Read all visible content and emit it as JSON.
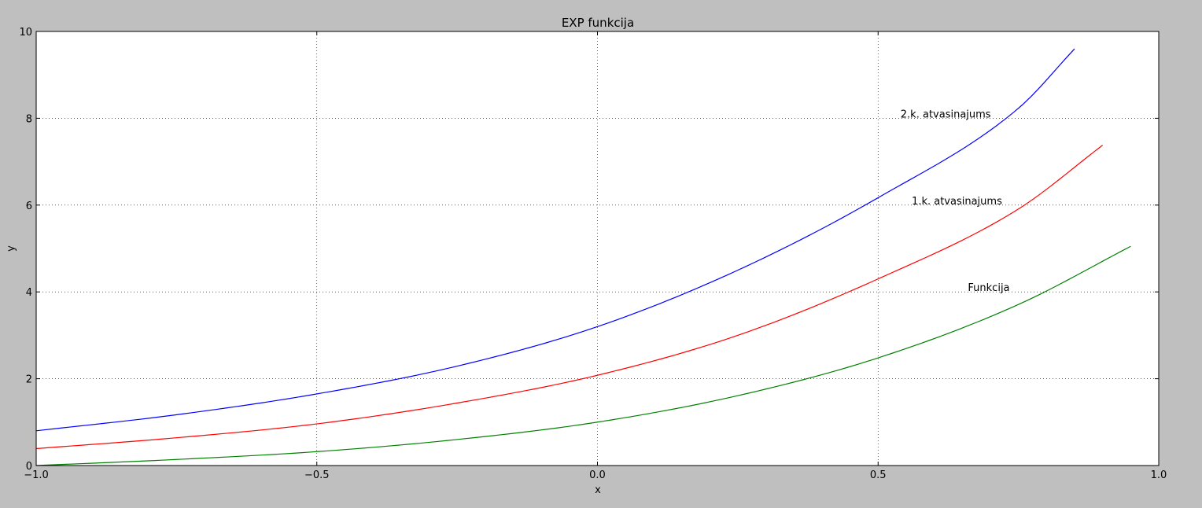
{
  "chart_data": {
    "type": "line",
    "title": "EXP funkcija",
    "xlabel": "x",
    "ylabel": "y",
    "xlim": [
      -1.0,
      1.0
    ],
    "ylim": [
      0,
      10
    ],
    "grid": true,
    "x_ticks": [
      "−1.0",
      "−0.5",
      "0.0",
      "0.5",
      "1.0"
    ],
    "y_ticks": [
      "0",
      "2",
      "4",
      "6",
      "8",
      "10"
    ],
    "colors": {
      "figure_bg": "#bfbfbf",
      "axes_bg": "#ffffff",
      "grid": "#000000"
    },
    "series": [
      {
        "color": "#008000",
        "x": [
          -1.0,
          -0.75,
          -0.5,
          -0.25,
          0.0,
          0.25,
          0.5,
          0.75,
          0.95
        ],
        "y": [
          0.0,
          0.14,
          0.32,
          0.6,
          1.0,
          1.61,
          2.48,
          3.71,
          5.05
        ]
      },
      {
        "color": "#ff0000",
        "x": [
          -1.0,
          -0.75,
          -0.5,
          -0.25,
          0.0,
          0.25,
          0.5,
          0.75,
          0.9
        ],
        "y": [
          0.39,
          0.64,
          0.96,
          1.44,
          2.08,
          3.0,
          4.3,
          5.91,
          7.38
        ]
      },
      {
        "color": "#0000ff",
        "x": [
          -1.0,
          -0.75,
          -0.5,
          -0.25,
          0.0,
          0.25,
          0.5,
          0.75,
          0.85
        ],
        "y": [
          0.8,
          1.17,
          1.65,
          2.29,
          3.2,
          4.5,
          6.17,
          8.23,
          9.6
        ]
      }
    ],
    "annotations": [
      {
        "text": "Funkcija",
        "x": 0.66,
        "y": 4.0
      },
      {
        "text": "1.k. atvasinajums",
        "x": 0.56,
        "y": 6.0
      },
      {
        "text": "2.k. atvasinajums",
        "x": 0.54,
        "y": 8.0
      }
    ]
  }
}
